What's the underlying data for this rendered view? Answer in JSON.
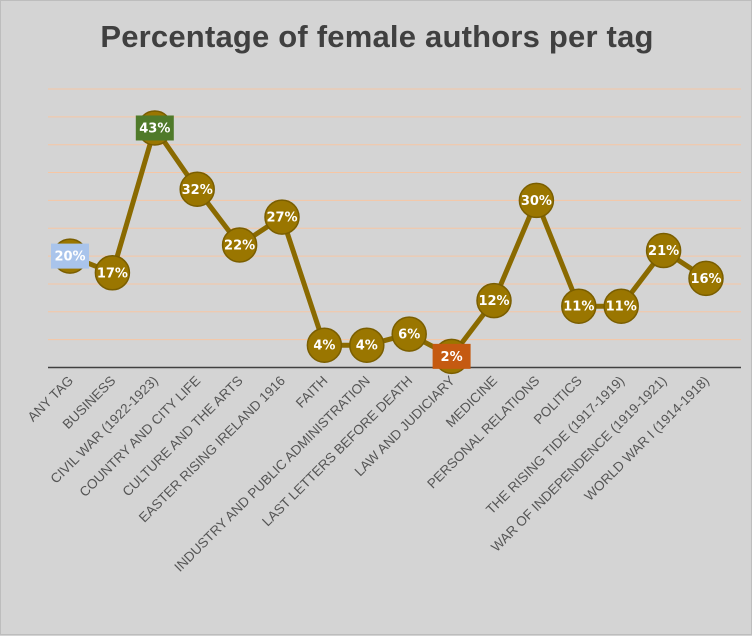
{
  "chart_data": {
    "type": "line",
    "title": "Percentage of female authors per tag",
    "xlabel": "",
    "ylabel": "",
    "ylim": [
      0,
      50
    ],
    "grid": true,
    "legend": "none",
    "categories": [
      "ANY TAG",
      "BUSINESS",
      "CIVIL WAR (1922-1923)",
      "COUNTRY AND CITY LIFE",
      "CULTURE AND THE ARTS",
      "EASTER RISING IRELAND 1916",
      "FAITH",
      "INDUSTRY AND PUBLIC ADMINISTRATION",
      "LAST LETTERS BEFORE DEATH",
      "LAW AND JUDICIARY",
      "MEDICINE",
      "PERSONAL RELATIONS",
      "POLITICS",
      "THE RISING TIDE (1917-1919)",
      "WAR OF INDEPENDENCE (1919-1921)",
      "WORLD WAR I (1914-1918)"
    ],
    "series": [
      {
        "values": [
          20,
          17,
          43,
          32,
          22,
          27,
          4,
          4,
          6,
          2,
          12,
          30,
          11,
          11,
          21,
          16
        ],
        "labels": [
          "20%",
          "17%",
          "43%",
          "32%",
          "22%",
          "27%",
          "4%",
          "4%",
          "6%",
          "2%",
          "12%",
          "30%",
          "11%",
          "11%",
          "21%",
          "16%"
        ]
      }
    ],
    "highlights": [
      {
        "index": 0,
        "role": "reference",
        "color": "#a9c4eb"
      },
      {
        "index": 2,
        "role": "maximum",
        "color": "#4f7a2a"
      },
      {
        "index": 9,
        "role": "minimum",
        "color": "#c55a11"
      }
    ],
    "colors": {
      "line": "#8a6a00",
      "marker": "#9a7600",
      "marker_edge": "#7a5e00",
      "gridline": "#f6c6a4",
      "axis": "#404040",
      "background": "#d4d4d4"
    }
  }
}
